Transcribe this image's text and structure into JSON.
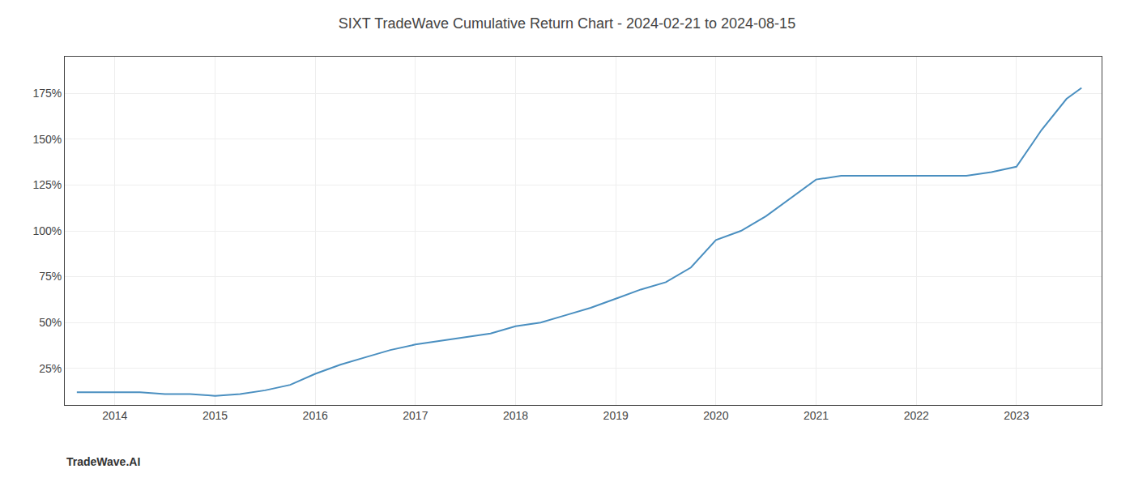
{
  "chart_data": {
    "type": "line",
    "title": "SIXT TradeWave Cumulative Return Chart - 2024-02-21 to 2024-08-15",
    "annotations": [
      {
        "text": "TradeWave.AI"
      }
    ],
    "x": [
      2013.62,
      2014.0,
      2014.25,
      2014.5,
      2014.75,
      2015.0,
      2015.25,
      2015.5,
      2015.75,
      2016.0,
      2016.25,
      2016.5,
      2016.75,
      2017.0,
      2017.25,
      2017.5,
      2017.75,
      2018.0,
      2018.25,
      2018.5,
      2018.75,
      2019.0,
      2019.25,
      2019.5,
      2019.75,
      2020.0,
      2020.25,
      2020.5,
      2020.75,
      2021.0,
      2021.25,
      2021.5,
      2021.75,
      2022.0,
      2022.25,
      2022.5,
      2022.75,
      2023.0,
      2023.25,
      2023.5,
      2023.65
    ],
    "values": [
      12,
      12,
      12,
      11,
      11,
      10,
      11,
      13,
      16,
      22,
      27,
      31,
      35,
      38,
      40,
      42,
      44,
      48,
      50,
      54,
      58,
      63,
      68,
      72,
      80,
      95,
      100,
      108,
      118,
      128,
      130,
      130,
      130,
      130,
      130,
      130,
      132,
      135,
      155,
      172,
      178
    ],
    "color": "#4a8fc0",
    "xlim": [
      2013.5,
      2023.85
    ],
    "xticks": [
      2014,
      2015,
      2016,
      2017,
      2018,
      2019,
      2020,
      2021,
      2022,
      2023
    ],
    "ylim": [
      5,
      195
    ],
    "yticks": [
      {
        "value": 25,
        "label": "25%"
      },
      {
        "value": 50,
        "label": "50%"
      },
      {
        "value": 75,
        "label": "75%"
      },
      {
        "value": 100,
        "label": "100%"
      },
      {
        "value": 125,
        "label": "125%"
      },
      {
        "value": 150,
        "label": "150%"
      },
      {
        "value": 175,
        "label": "175%"
      }
    ],
    "grid": true
  }
}
